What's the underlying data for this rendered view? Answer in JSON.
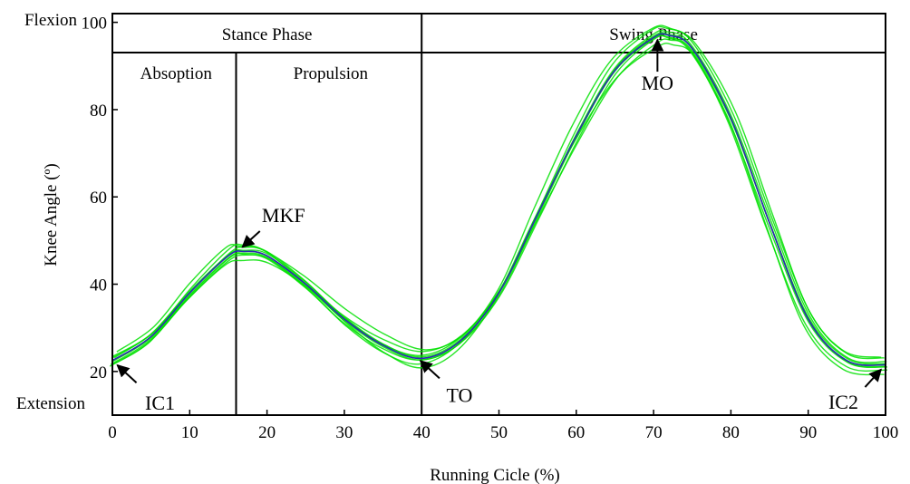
{
  "chart_data": {
    "type": "line",
    "title": "",
    "xlabel": "Running Cicle (%)",
    "ylabel": "Knee Angle (º)",
    "xlim": [
      0,
      100
    ],
    "ylim": [
      10,
      102
    ],
    "x_ticks": [
      0,
      10,
      20,
      30,
      40,
      50,
      60,
      70,
      80,
      90,
      100
    ],
    "y_ticks": [
      20,
      40,
      60,
      80,
      100
    ],
    "grid": false,
    "legend": "none",
    "direction_labels": {
      "top": "Flexion",
      "bottom": "Extension"
    },
    "phases": [
      {
        "label": "Stance Phase",
        "start": 0,
        "end": 40
      },
      {
        "label": "Swing Phase",
        "start": 40,
        "end": 100
      }
    ],
    "subphases": [
      {
        "label": "Absoption",
        "start": 0,
        "end": 16
      },
      {
        "label": "Propulsion",
        "start": 16,
        "end": 40
      }
    ],
    "dividers": [
      16,
      40
    ],
    "annotations": [
      {
        "label": "IC1",
        "x": 0.3,
        "y": 22
      },
      {
        "label": "MKF",
        "x": 16.5,
        "y": 48
      },
      {
        "label": "TO",
        "x": 39.5,
        "y": 23
      },
      {
        "label": "MO",
        "x": 70.5,
        "y": 97
      },
      {
        "label": "IC2",
        "x": 99.7,
        "y": 21
      }
    ],
    "x": [
      0,
      5,
      10,
      15,
      17,
      20,
      25,
      30,
      35,
      40,
      45,
      50,
      55,
      60,
      65,
      70,
      72,
      75,
      80,
      85,
      90,
      95,
      100
    ],
    "mean_curve": [
      22.5,
      28,
      38,
      46.5,
      47.5,
      46.5,
      40,
      32,
      26,
      23,
      27,
      38,
      56,
      74,
      89,
      96.5,
      97,
      94,
      78,
      54,
      32,
      22.5,
      21.5
    ],
    "trial_offsets": [
      -2.2,
      -1.5,
      -0.9,
      -0.4,
      0,
      0.5,
      1.0,
      1.6,
      2.3
    ],
    "colors": {
      "trials": "#00e000",
      "mean": "#2a2ab0",
      "axes": "#000000"
    }
  }
}
